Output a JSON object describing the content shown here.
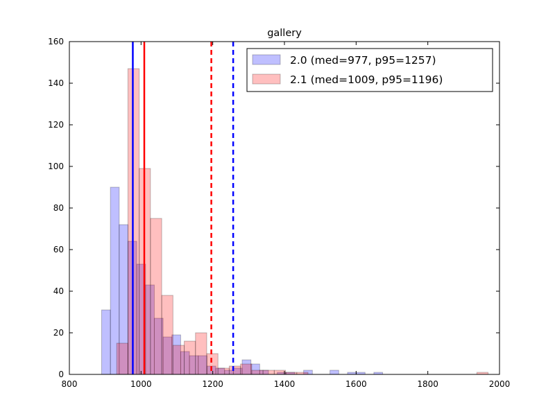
{
  "chart_data": {
    "type": "histogram",
    "title": "gallery",
    "xlabel": "",
    "ylabel": "",
    "xlim": [
      800,
      2000
    ],
    "ylim": [
      0,
      160
    ],
    "xticks": [
      800,
      1000,
      1200,
      1400,
      1600,
      1800,
      2000
    ],
    "yticks": [
      0,
      20,
      40,
      60,
      80,
      100,
      120,
      140,
      160
    ],
    "grid": false,
    "legend_position": "top-right",
    "series": [
      {
        "name": "2.0 (med=977, p95=1257)",
        "color": "#0000ff",
        "bin_width": 24.5,
        "bin_start": 890,
        "counts": [
          31,
          90,
          72,
          64,
          53,
          43,
          27,
          18,
          19,
          11,
          9,
          9,
          4,
          3,
          2,
          3,
          7,
          5,
          2,
          0,
          1,
          1,
          0,
          2,
          0,
          0,
          2,
          0,
          1,
          1,
          0,
          1,
          0,
          0,
          0,
          0,
          0,
          0,
          0,
          0,
          0,
          0,
          0,
          0,
          0,
          0,
          0,
          0,
          0,
          0,
          0
        ],
        "median": 977,
        "p95": 1257
      },
      {
        "name": "2.1 (med=1009, p95=1196)",
        "color": "#ff0000",
        "bin_width": 31.4,
        "bin_start": 932,
        "counts": [
          15,
          147,
          99,
          75,
          38,
          14,
          16,
          20,
          10,
          3,
          4,
          5,
          2,
          2,
          2,
          1,
          1,
          0,
          0,
          0,
          0,
          0,
          0,
          0,
          0,
          0,
          0,
          0,
          0,
          0,
          0,
          0,
          1
        ],
        "median": 1009,
        "p95": 1196
      }
    ]
  }
}
